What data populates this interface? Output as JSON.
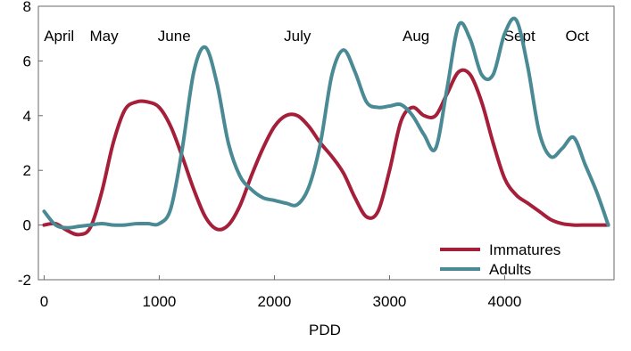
{
  "chart_data": {
    "type": "line",
    "xlabel": "PDD",
    "ylabel": "",
    "xlim": [
      -50,
      4950
    ],
    "ylim": [
      -2,
      8
    ],
    "xticks": [
      0,
      1000,
      2000,
      3000,
      4000
    ],
    "yticks": [
      -2,
      0,
      2,
      4,
      6,
      8
    ],
    "grid": false,
    "legend_position": "bottom-right",
    "month_annotations": [
      {
        "label": "April",
        "x": 130
      },
      {
        "label": "May",
        "x": 520
      },
      {
        "label": "June",
        "x": 1130
      },
      {
        "label": "July",
        "x": 2200
      },
      {
        "label": "Aug",
        "x": 3230
      },
      {
        "label": "Sept",
        "x": 4130
      },
      {
        "label": "Oct",
        "x": 4630
      }
    ],
    "series": [
      {
        "name": "Immatures",
        "color": "#a51f3a",
        "x": [
          0,
          100,
          200,
          300,
          400,
          500,
          600,
          700,
          800,
          900,
          1000,
          1100,
          1200,
          1300,
          1400,
          1500,
          1600,
          1700,
          1800,
          1900,
          2000,
          2100,
          2200,
          2300,
          2400,
          2500,
          2600,
          2700,
          2800,
          2900,
          3000,
          3100,
          3200,
          3300,
          3400,
          3500,
          3600,
          3700,
          3800,
          3900,
          4000,
          4100,
          4200,
          4300,
          4400,
          4500,
          4600,
          4700,
          4800,
          4900
        ],
        "values": [
          0.0,
          0.05,
          -0.2,
          -0.35,
          -0.1,
          1.2,
          3.0,
          4.2,
          4.5,
          4.5,
          4.3,
          3.6,
          2.5,
          1.3,
          0.3,
          -0.15,
          0.0,
          0.7,
          1.8,
          2.8,
          3.6,
          4.0,
          4.0,
          3.6,
          3.0,
          2.5,
          1.9,
          1.0,
          0.3,
          0.5,
          2.0,
          3.8,
          4.3,
          4.0,
          4.0,
          4.8,
          5.6,
          5.5,
          4.5,
          3.0,
          1.7,
          1.1,
          0.8,
          0.5,
          0.2,
          0.05,
          0.0,
          0.0,
          0.0,
          0.0
        ]
      },
      {
        "name": "Adults",
        "color": "#4a8a94",
        "x": [
          0,
          100,
          200,
          300,
          400,
          500,
          600,
          700,
          800,
          900,
          1000,
          1100,
          1200,
          1300,
          1400,
          1500,
          1600,
          1700,
          1800,
          1900,
          2000,
          2100,
          2200,
          2300,
          2400,
          2500,
          2600,
          2700,
          2800,
          2900,
          3000,
          3100,
          3200,
          3300,
          3400,
          3500,
          3600,
          3700,
          3800,
          3900,
          4000,
          4100,
          4200,
          4300,
          4400,
          4500,
          4600,
          4700,
          4800,
          4900
        ],
        "values": [
          0.5,
          0.0,
          -0.1,
          -0.05,
          0.0,
          0.05,
          0.0,
          0.0,
          0.05,
          0.05,
          0.05,
          0.6,
          2.8,
          5.6,
          6.5,
          5.2,
          3.0,
          1.8,
          1.3,
          1.0,
          0.9,
          0.8,
          0.75,
          1.4,
          3.0,
          5.5,
          6.4,
          5.6,
          4.5,
          4.3,
          4.35,
          4.4,
          4.0,
          3.3,
          2.8,
          5.0,
          7.3,
          6.8,
          5.5,
          5.5,
          7.0,
          7.5,
          5.8,
          3.4,
          2.5,
          2.8,
          3.2,
          2.2,
          1.2,
          0.0
        ]
      }
    ]
  }
}
